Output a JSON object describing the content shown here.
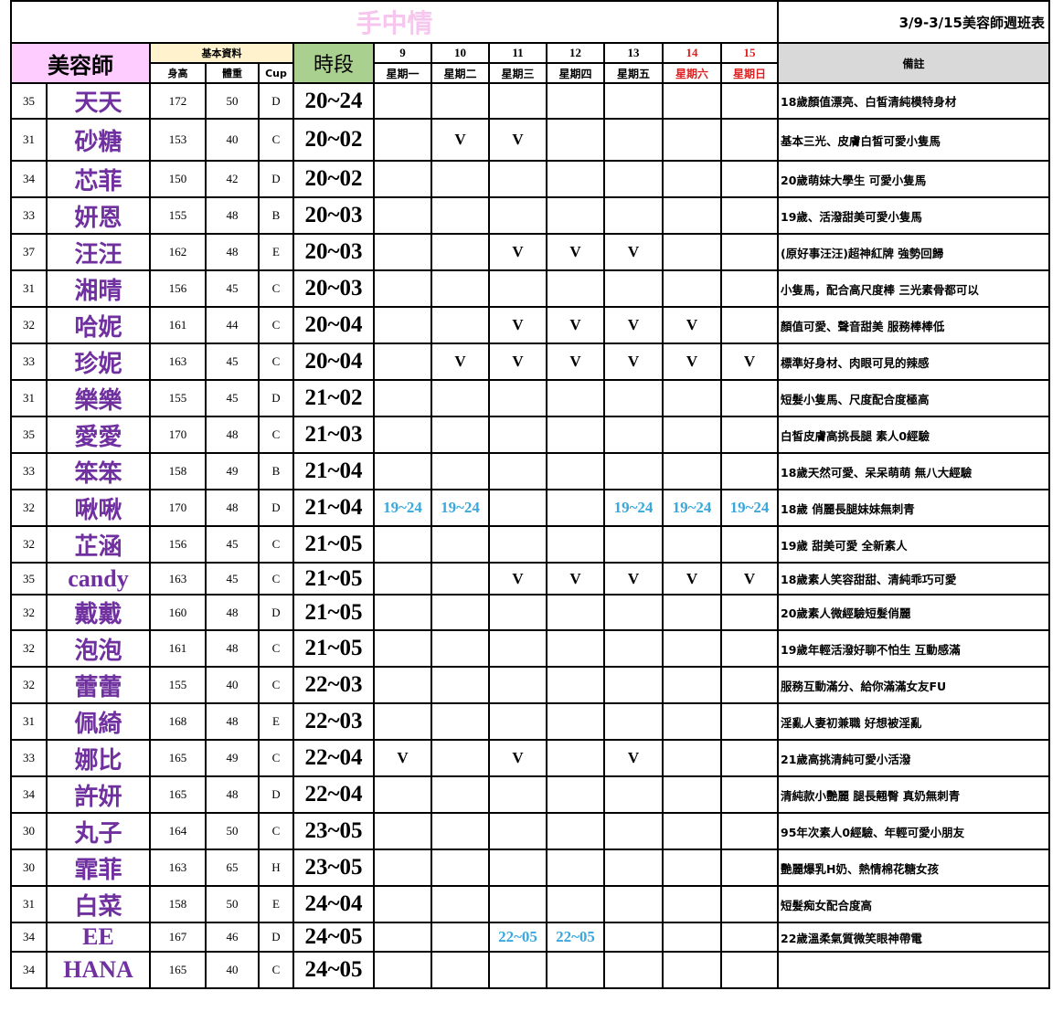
{
  "title": "手中情",
  "week_label": "3/9-3/15美容師週班表",
  "headers": {
    "name": "美容師",
    "basic": "基本資料",
    "height": "身高",
    "weight": "體重",
    "cup": "Cup",
    "time": "時段",
    "note": "備註"
  },
  "days": [
    {
      "date": "9",
      "dow": "星期一",
      "weekend": false
    },
    {
      "date": "10",
      "dow": "星期二",
      "weekend": false
    },
    {
      "date": "11",
      "dow": "星期三",
      "weekend": false
    },
    {
      "date": "12",
      "dow": "星期四",
      "weekend": false
    },
    {
      "date": "13",
      "dow": "星期五",
      "weekend": false
    },
    {
      "date": "14",
      "dow": "星期六",
      "weekend": true
    },
    {
      "date": "15",
      "dow": "星期日",
      "weekend": true
    }
  ],
  "colors": {
    "name_header": "#ffccff",
    "basic_header": "#fff2cc",
    "time_header": "#a9d08e",
    "note_header": "#d9d9d9",
    "name_text": "#7030a0",
    "weekend": "#e02020",
    "alt_shift": "#3aa8dc",
    "title": "#f7c6ef"
  },
  "rows": [
    {
      "age": "35",
      "name": "天天",
      "h": "172",
      "w": "50",
      "cup": "D",
      "time": "20~24",
      "days": [
        "",
        "",
        "",
        "",
        "",
        "",
        ""
      ],
      "note": "18歲顏值漂亮、白皙清純模特身材"
    },
    {
      "age": "31",
      "name": "砂糖",
      "h": "153",
      "w": "40",
      "cup": "C",
      "time": "20~02",
      "days": [
        "",
        "V",
        "V",
        "",
        "",
        "",
        ""
      ],
      "note": "基本三光、皮膚白皙可愛小隻馬"
    },
    {
      "age": "34",
      "name": "芯菲",
      "h": "150",
      "w": "42",
      "cup": "D",
      "time": "20~02",
      "days": [
        "",
        "",
        "",
        "",
        "",
        "",
        ""
      ],
      "note": "20歲萌妹大學生 可愛小隻馬"
    },
    {
      "age": "33",
      "name": "妍恩",
      "h": "155",
      "w": "48",
      "cup": "B",
      "time": "20~03",
      "days": [
        "",
        "",
        "",
        "",
        "",
        "",
        ""
      ],
      "note": "19歲、活潑甜美可愛小隻馬"
    },
    {
      "age": "37",
      "name": "汪汪",
      "h": "162",
      "w": "48",
      "cup": "E",
      "time": "20~03",
      "days": [
        "",
        "",
        "V",
        "V",
        "V",
        "",
        ""
      ],
      "note": "(原好事汪汪)超神紅牌 強勢回歸"
    },
    {
      "age": "31",
      "name": "湘晴",
      "h": "156",
      "w": "45",
      "cup": "C",
      "time": "20~03",
      "days": [
        "",
        "",
        "",
        "",
        "",
        "",
        ""
      ],
      "note": "小隻馬，配合高尺度棒 三光素骨都可以"
    },
    {
      "age": "32",
      "name": "哈妮",
      "h": "161",
      "w": "44",
      "cup": "C",
      "time": "20~04",
      "days": [
        "",
        "",
        "V",
        "V",
        "V",
        "V",
        ""
      ],
      "note": "顏值可愛、聲音甜美 服務棒棒低"
    },
    {
      "age": "33",
      "name": "珍妮",
      "h": "163",
      "w": "45",
      "cup": "C",
      "time": "20~04",
      "days": [
        "",
        "V",
        "V",
        "V",
        "V",
        "V",
        "V"
      ],
      "note": "標準好身材、肉眼可見的辣感"
    },
    {
      "age": "31",
      "name": "樂樂",
      "h": "155",
      "w": "45",
      "cup": "D",
      "time": "21~02",
      "days": [
        "",
        "",
        "",
        "",
        "",
        "",
        ""
      ],
      "note": "短髮小隻馬、尺度配合度極高"
    },
    {
      "age": "35",
      "name": "愛愛",
      "h": "170",
      "w": "48",
      "cup": "C",
      "time": "21~03",
      "days": [
        "",
        "",
        "",
        "",
        "",
        "",
        ""
      ],
      "note": "白皙皮膚高挑長腿 素人0經驗"
    },
    {
      "age": "33",
      "name": "笨笨",
      "h": "158",
      "w": "49",
      "cup": "B",
      "time": "21~04",
      "days": [
        "",
        "",
        "",
        "",
        "",
        "",
        ""
      ],
      "note": "18歲天然可愛、呆呆萌萌 無八大經驗"
    },
    {
      "age": "32",
      "name": "啾啾",
      "h": "170",
      "w": "48",
      "cup": "D",
      "time": "21~04",
      "days": [
        "19~24",
        "19~24",
        "",
        "",
        "19~24",
        "19~24",
        "19~24"
      ],
      "note": "18歲 俏麗長腿妹妹無刺青"
    },
    {
      "age": "32",
      "name": "芷涵",
      "h": "156",
      "w": "45",
      "cup": "C",
      "time": "21~05",
      "days": [
        "",
        "",
        "",
        "",
        "",
        "",
        ""
      ],
      "note": "19歲 甜美可愛 全新素人"
    },
    {
      "age": "35",
      "name": "candy",
      "h": "163",
      "w": "45",
      "cup": "C",
      "time": "21~05",
      "days": [
        "",
        "",
        "V",
        "V",
        "V",
        "V",
        "V"
      ],
      "note": "18歲素人笑容甜甜、清純乖巧可愛"
    },
    {
      "age": "32",
      "name": "戴戴",
      "h": "160",
      "w": "48",
      "cup": "D",
      "time": "21~05",
      "days": [
        "",
        "",
        "",
        "",
        "",
        "",
        ""
      ],
      "note": "20歲素人微經驗短髮俏麗"
    },
    {
      "age": "32",
      "name": "泡泡",
      "h": "161",
      "w": "48",
      "cup": "C",
      "time": "21~05",
      "days": [
        "",
        "",
        "",
        "",
        "",
        "",
        ""
      ],
      "note": "19歲年輕活潑好聊不怕生 互動感滿"
    },
    {
      "age": "32",
      "name": "蕾蕾",
      "h": "155",
      "w": "40",
      "cup": "C",
      "time": "22~03",
      "days": [
        "",
        "",
        "",
        "",
        "",
        "",
        ""
      ],
      "note": "服務互動滿分、給你滿滿女友FU"
    },
    {
      "age": "31",
      "name": "佩綺",
      "h": "168",
      "w": "48",
      "cup": "E",
      "time": "22~03",
      "days": [
        "",
        "",
        "",
        "",
        "",
        "",
        ""
      ],
      "note": "淫亂人妻初兼職 好想被淫亂"
    },
    {
      "age": "33",
      "name": "娜比",
      "h": "165",
      "w": "49",
      "cup": "C",
      "time": "22~04",
      "days": [
        "V",
        "",
        "V",
        "",
        "V",
        "",
        ""
      ],
      "note": "21歲高挑清純可愛小活潑"
    },
    {
      "age": "34",
      "name": "許妍",
      "h": "165",
      "w": "48",
      "cup": "D",
      "time": "22~04",
      "days": [
        "",
        "",
        "",
        "",
        "",
        "",
        ""
      ],
      "note": "清純款小艷麗 腿長翹臀 真奶無刺青"
    },
    {
      "age": "30",
      "name": "丸子",
      "h": "164",
      "w": "50",
      "cup": "C",
      "time": "23~05",
      "days": [
        "",
        "",
        "",
        "",
        "",
        "",
        ""
      ],
      "note": "95年次素人0經驗、年輕可愛小朋友"
    },
    {
      "age": "30",
      "name": "霏菲",
      "h": "163",
      "w": "65",
      "cup": "H",
      "time": "23~05",
      "days": [
        "",
        "",
        "",
        "",
        "",
        "",
        ""
      ],
      "note": "艷麗爆乳H奶、熱情棉花糖女孩"
    },
    {
      "age": "31",
      "name": "白菜",
      "h": "158",
      "w": "50",
      "cup": "E",
      "time": "24~04",
      "days": [
        "",
        "",
        "",
        "",
        "",
        "",
        ""
      ],
      "note": "短髮痴女配合度高"
    },
    {
      "age": "34",
      "name": "EE",
      "h": "167",
      "w": "46",
      "cup": "D",
      "time": "24~05",
      "days": [
        "",
        "",
        "22~05",
        "22~05",
        "",
        "",
        ""
      ],
      "note": "22歲溫柔氣質微笑眼神帶電"
    },
    {
      "age": "34",
      "name": "HANA",
      "h": "165",
      "w": "40",
      "cup": "C",
      "time": "24~05",
      "days": [
        "",
        "",
        "",
        "",
        "",
        "",
        ""
      ],
      "note": ""
    }
  ]
}
